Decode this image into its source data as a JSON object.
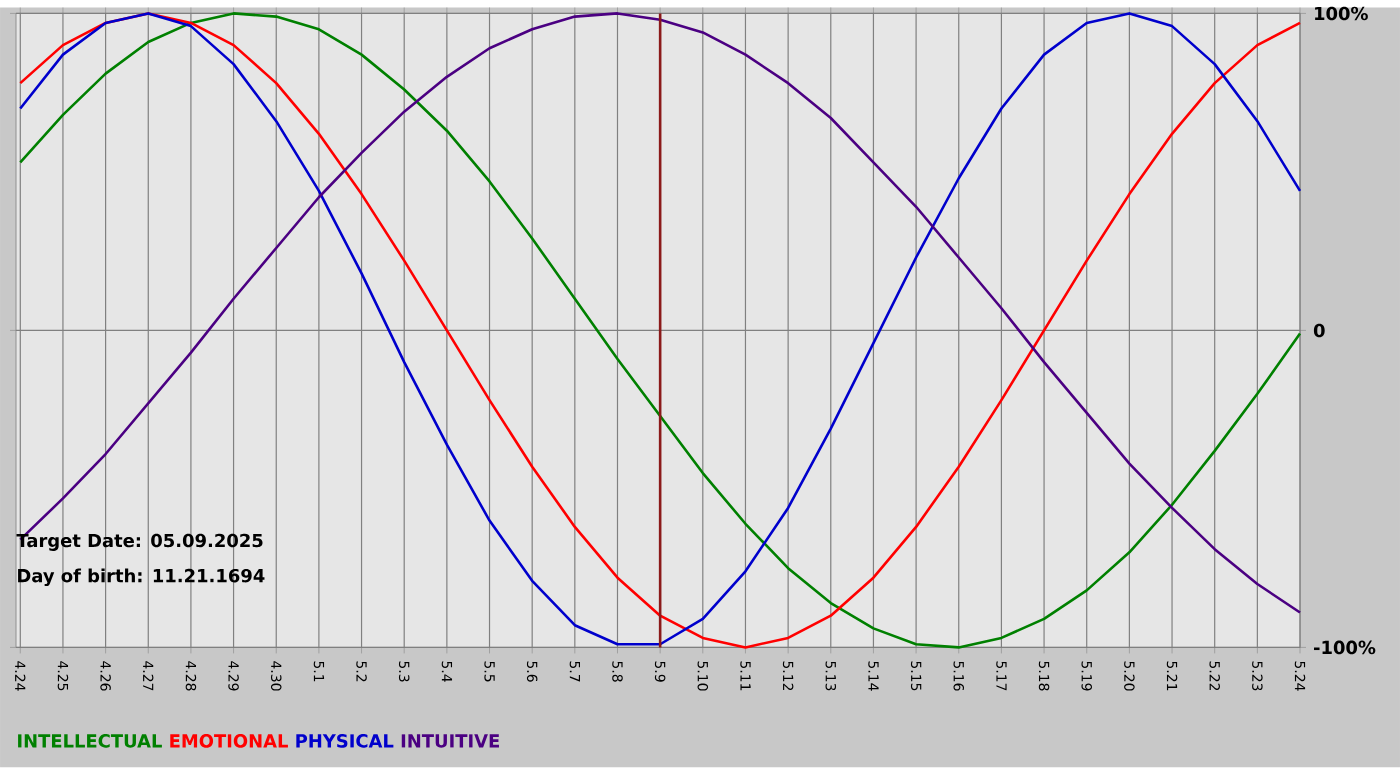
{
  "chart_data": {
    "type": "line",
    "categories": [
      "4.24",
      "4.25",
      "4.26",
      "4.27",
      "4.28",
      "4.29",
      "4.30",
      "5.1",
      "5.2",
      "5.3",
      "5.4",
      "5.5",
      "5.6",
      "5.7",
      "5.8",
      "5.9",
      "5.10",
      "5.11",
      "5.12",
      "5.13",
      "5.14",
      "5.15",
      "5.16",
      "5.17",
      "5.18",
      "5.19",
      "5.20",
      "5.21",
      "5.22",
      "5.23",
      "5.24"
    ],
    "series": [
      {
        "name": "INTELLECTUAL",
        "color": "#008000",
        "values": [
          53,
          68,
          81,
          91,
          97,
          100,
          99,
          95,
          87,
          76,
          63,
          47,
          29,
          10,
          -9,
          -27,
          -45,
          -61,
          -75,
          -86,
          -94,
          -99,
          -100,
          -97,
          -91,
          -82,
          -70,
          -55,
          -38,
          -20,
          -1
        ]
      },
      {
        "name": "EMOTIONAL",
        "color": "#ff0000",
        "values": [
          78,
          90,
          97,
          100,
          97,
          90,
          78,
          62,
          43,
          22,
          0,
          -22,
          -43,
          -62,
          -78,
          -90,
          -97,
          -100,
          -97,
          -90,
          -78,
          -62,
          -43,
          -22,
          0,
          22,
          43,
          62,
          78,
          90,
          97
        ]
      },
      {
        "name": "PHYSICAL",
        "color": "#0000cc",
        "values": [
          70,
          87,
          97,
          100,
          96,
          84,
          66,
          44,
          18,
          -10,
          -36,
          -60,
          -79,
          -93,
          -99,
          -99,
          -91,
          -76,
          -56,
          -31,
          -4,
          23,
          48,
          70,
          87,
          97,
          100,
          96,
          84,
          66,
          44
        ]
      },
      {
        "name": "INTUITIVE",
        "color": "#4b0082",
        "values": [
          -66,
          -53,
          -39,
          -23,
          -7,
          10,
          26,
          42,
          56,
          69,
          80,
          89,
          95,
          99,
          100,
          98,
          94,
          87,
          78,
          67,
          53,
          39,
          23,
          7,
          -10,
          -26,
          -42,
          -56,
          -69,
          -80,
          -89
        ]
      }
    ],
    "ylim": [
      -100,
      100
    ],
    "yticks": [
      {
        "value": -100,
        "label": "-100%"
      },
      0,
      {
        "value": 100,
        "label": "100%"
      }
    ],
    "grid": true,
    "legend": "bottom",
    "marker": "none",
    "line_style": "solid",
    "ref_lines": [
      {
        "axis": "x",
        "value": "5.9",
        "color": "#8b1a1a"
      }
    ],
    "annotations": [
      "Target Date: 05.09.2025",
      "Day of birth: 11.21.1694"
    ]
  }
}
